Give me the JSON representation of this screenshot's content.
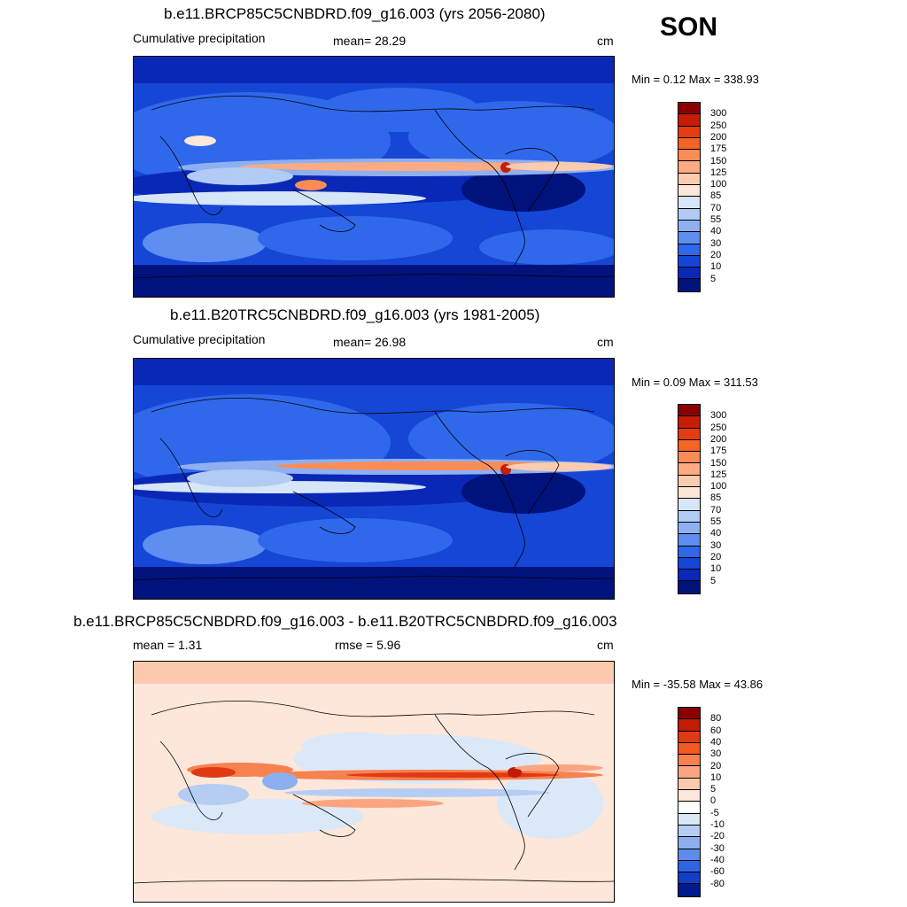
{
  "season": "SON",
  "panels": [
    {
      "id": "future",
      "title": "b.e11.BRCP85C5CNBDRD.f09_g16.003 (yrs 2056-2080)",
      "left_label": "Cumulative precipitation",
      "mid_label": "mean=  28.29",
      "units": "cm",
      "minmax": "Min =   0.12 Max = 338.93",
      "colorbar_ticks": [
        "300",
        "250",
        "200",
        "175",
        "150",
        "125",
        "100",
        "85",
        "70",
        "55",
        "40",
        "30",
        "20",
        "10",
        "5"
      ],
      "colorbar_colors": [
        "#8a0000",
        "#c61e06",
        "#e63b10",
        "#f56424",
        "#fb8c55",
        "#fcab82",
        "#fdcbb0",
        "#fbe8d8",
        "#d6e5f8",
        "#b1cbf4",
        "#8eb0f1",
        "#5d8ef0",
        "#2f68ea",
        "#1646d6",
        "#0a28b6",
        "#00137d"
      ]
    },
    {
      "id": "historical",
      "title": "b.e11.B20TRC5CNBDRD.f09_g16.003 (yrs 1981-2005)",
      "left_label": "Cumulative precipitation",
      "mid_label": "mean=  26.98",
      "units": "cm",
      "minmax": "Min =   0.09 Max = 311.53",
      "colorbar_ticks": [
        "300",
        "250",
        "200",
        "175",
        "150",
        "125",
        "100",
        "85",
        "70",
        "55",
        "40",
        "30",
        "20",
        "10",
        "5"
      ],
      "colorbar_colors": [
        "#8a0000",
        "#c61e06",
        "#e63b10",
        "#f56424",
        "#fb8c55",
        "#fcab82",
        "#fdcbb0",
        "#fbe8d8",
        "#d6e5f8",
        "#b1cbf4",
        "#8eb0f1",
        "#5d8ef0",
        "#2f68ea",
        "#1646d6",
        "#0a28b6",
        "#00137d"
      ]
    },
    {
      "id": "difference",
      "title": "b.e11.BRCP85C5CNBDRD.f09_g16.003 - b.e11.B20TRC5CNBDRD.f09_g16.003",
      "left_label": "mean =   1.31",
      "mid_label": "rmse =   5.96",
      "units": "cm",
      "minmax": "Min = -35.58 Max =  43.86",
      "colorbar_ticks": [
        "80",
        "60",
        "40",
        "30",
        "20",
        "10",
        "5",
        "0",
        "-5",
        "-10",
        "-20",
        "-30",
        "-40",
        "-60",
        "-80"
      ],
      "colorbar_colors": [
        "#8a0000",
        "#c01c06",
        "#e03a12",
        "#f25a22",
        "#f88150",
        "#fba580",
        "#fdc9ae",
        "#fde7da",
        "#ffffff",
        "#dbe8f8",
        "#b5cdf3",
        "#8cb0ef",
        "#5d8cec",
        "#2f66e4",
        "#123ec8",
        "#021a8a"
      ]
    }
  ]
}
